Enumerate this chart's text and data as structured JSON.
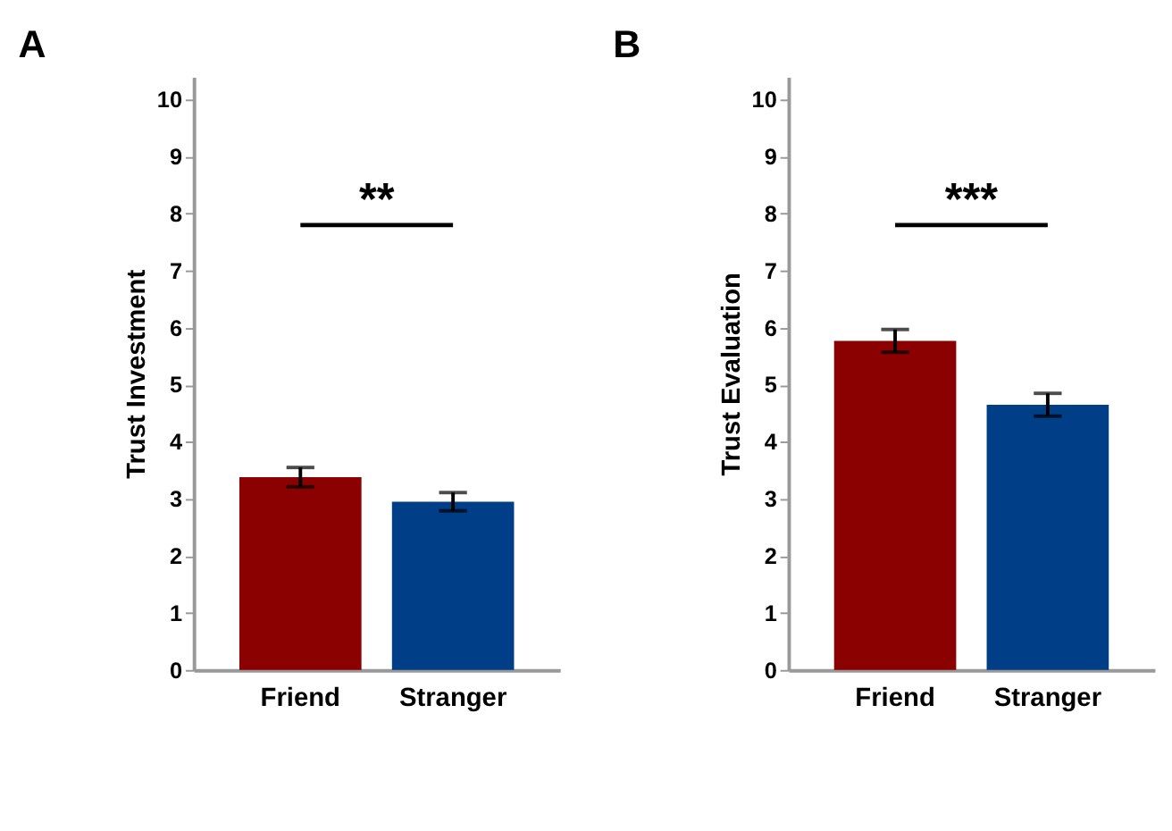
{
  "chart_data": [
    {
      "type": "bar",
      "title": "A",
      "ylabel": "Trust Investment",
      "categories": [
        "Friend",
        "Stranger"
      ],
      "values": [
        3.38,
        2.95
      ],
      "colors": [
        "#8b0000",
        "#003f87"
      ],
      "errors": [
        0.17,
        0.16
      ],
      "ylim": [
        0,
        10.4
      ],
      "yticks": [
        0,
        1,
        2,
        3,
        4,
        5,
        6,
        7,
        8,
        9,
        10
      ],
      "grid": false,
      "annotations": [
        "**"
      ]
    },
    {
      "type": "bar",
      "title": "B",
      "ylabel": "Trust Evaluation",
      "categories": [
        "Friend",
        "Stranger"
      ],
      "values": [
        5.77,
        4.65
      ],
      "colors": [
        "#8b0000",
        "#003f87"
      ],
      "errors": [
        0.2,
        0.2
      ],
      "ylim": [
        0,
        10.4
      ],
      "yticks": [
        0,
        1,
        2,
        3,
        4,
        5,
        6,
        7,
        8,
        9,
        10
      ],
      "grid": false,
      "annotations": [
        "***"
      ]
    }
  ]
}
